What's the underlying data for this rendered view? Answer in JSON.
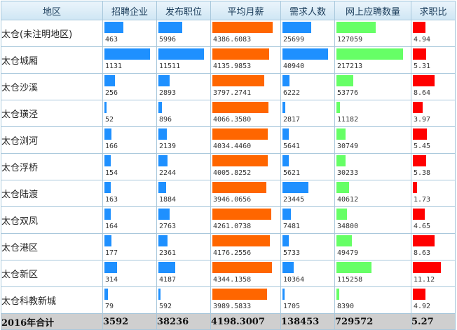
{
  "columns": [
    "地区",
    "招聘企业",
    "发布职位",
    "平均月薪",
    "需求人数",
    "网上应聘数量",
    "求职比"
  ],
  "bar_colors": [
    "#1e90ff",
    "#1e90ff",
    "#ff6600",
    "#1e90ff",
    "#66ff66",
    "#ff0000"
  ],
  "bar_scale_max": [
    1131,
    11511,
    4386.6083,
    40940,
    217213,
    11.12
  ],
  "rows": [
    {
      "name": "太仓(未注明地区)",
      "values": [
        "463",
        "5996",
        "4386.6083",
        "25699",
        "127059",
        "4.94"
      ]
    },
    {
      "name": "太仓城厢",
      "values": [
        "1131",
        "11511",
        "4135.9853",
        "40940",
        "217213",
        "5.31"
      ]
    },
    {
      "name": "太仓沙溪",
      "values": [
        "256",
        "2893",
        "3797.2741",
        "6222",
        "53776",
        "8.64"
      ]
    },
    {
      "name": "太仓璜泾",
      "values": [
        "52",
        "896",
        "4066.3580",
        "2817",
        "11182",
        "3.97"
      ]
    },
    {
      "name": "太仓浏河",
      "values": [
        "166",
        "2139",
        "4034.4460",
        "5641",
        "30749",
        "5.45"
      ]
    },
    {
      "name": "太仓浮桥",
      "values": [
        "154",
        "2244",
        "4005.8252",
        "5621",
        "30233",
        "5.38"
      ]
    },
    {
      "name": "太仓陆渡",
      "values": [
        "163",
        "1884",
        "3946.0656",
        "23445",
        "40612",
        "1.73"
      ]
    },
    {
      "name": "太仓双凤",
      "values": [
        "164",
        "2763",
        "4261.0738",
        "7481",
        "34800",
        "4.65"
      ]
    },
    {
      "name": "太仓港区",
      "values": [
        "177",
        "2361",
        "4176.2556",
        "5733",
        "49479",
        "8.63"
      ]
    },
    {
      "name": "太仓新区",
      "values": [
        "314",
        "4187",
        "4344.1358",
        "10364",
        "115258",
        "11.12"
      ]
    },
    {
      "name": "太仓科教新城",
      "values": [
        "79",
        "592",
        "3989.5833",
        "1705",
        "8390",
        "4.92"
      ]
    }
  ],
  "total": {
    "label": "2016年合计",
    "values": [
      "3592",
      "38236",
      "4198.3007",
      "138453",
      "729572",
      "5.27"
    ]
  }
}
